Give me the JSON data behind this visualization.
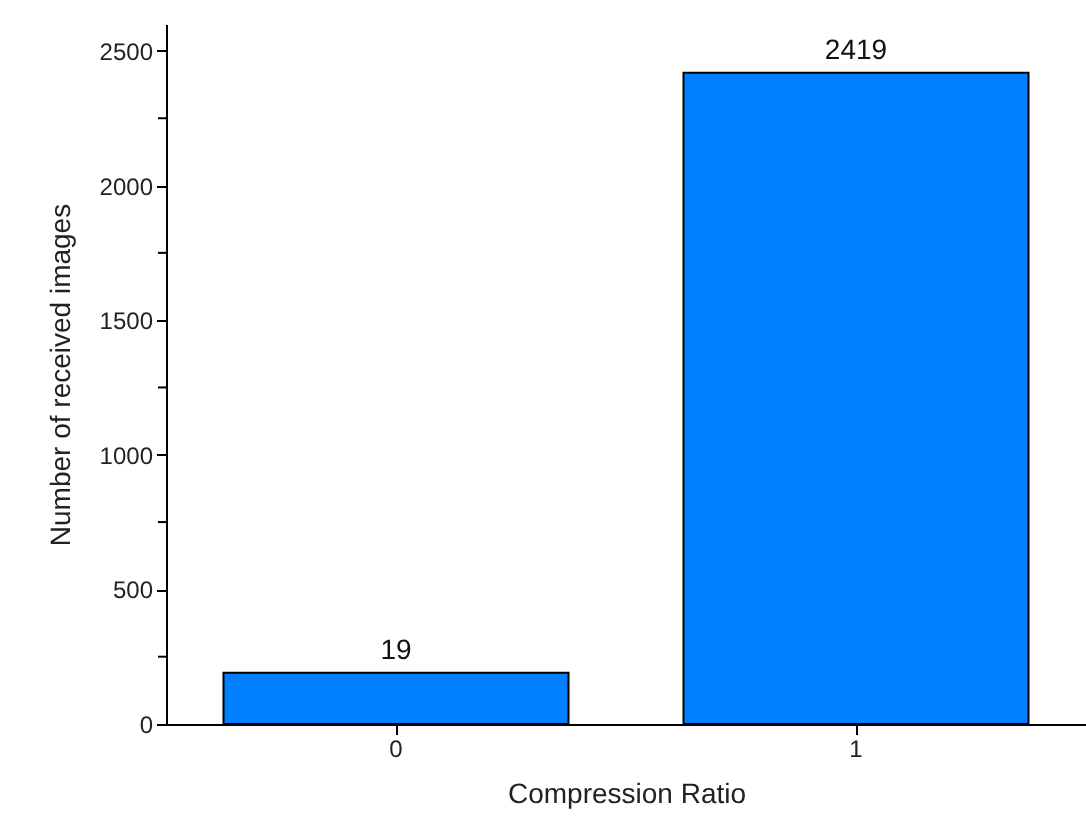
{
  "chart_data": {
    "type": "bar",
    "xlabel": "Compression Ratio",
    "ylabel": "Number of received images",
    "categories": [
      "0",
      "1"
    ],
    "values": [
      190,
      2419
    ],
    "value_labels": [
      null,
      "2419"
    ],
    "color": "#0080ff",
    "annotations": [
      {
        "text": "19",
        "x": "0",
        "y": 190
      }
    ],
    "ylim": [
      0,
      2600
    ],
    "yticks": [
      0,
      {
        "value": 250,
        "label": null
      },
      500,
      {
        "value": 750,
        "label": null
      },
      1000,
      {
        "value": 1250,
        "label": null
      },
      1500,
      {
        "value": 1750,
        "label": null
      },
      2000,
      {
        "value": 2250,
        "label": null
      },
      2500
    ],
    "grid": false
  }
}
